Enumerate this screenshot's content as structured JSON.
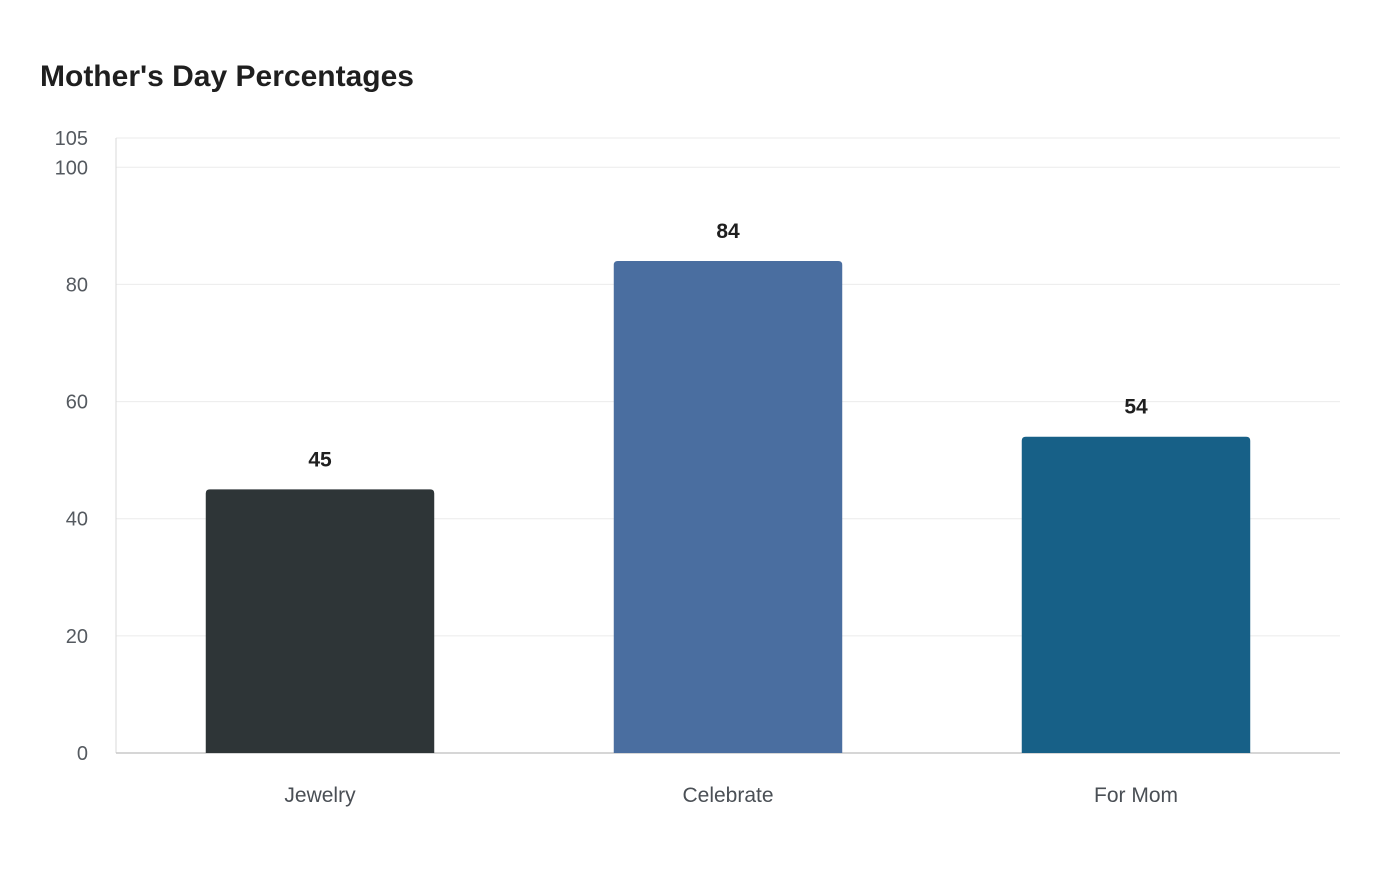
{
  "chart_data": {
    "type": "bar",
    "title": "Mother's Day Percentages",
    "xlabel": "",
    "ylabel": "",
    "categories": [
      "Jewelry",
      "Celebrate",
      "For Mom"
    ],
    "values": [
      45,
      84,
      54
    ],
    "colors": [
      "#2e3537",
      "#4a6ea0",
      "#176087"
    ],
    "ylim": [
      0,
      105
    ],
    "yticks": [
      0,
      20,
      40,
      60,
      80,
      100,
      105
    ],
    "grid": true,
    "legend": "none"
  }
}
